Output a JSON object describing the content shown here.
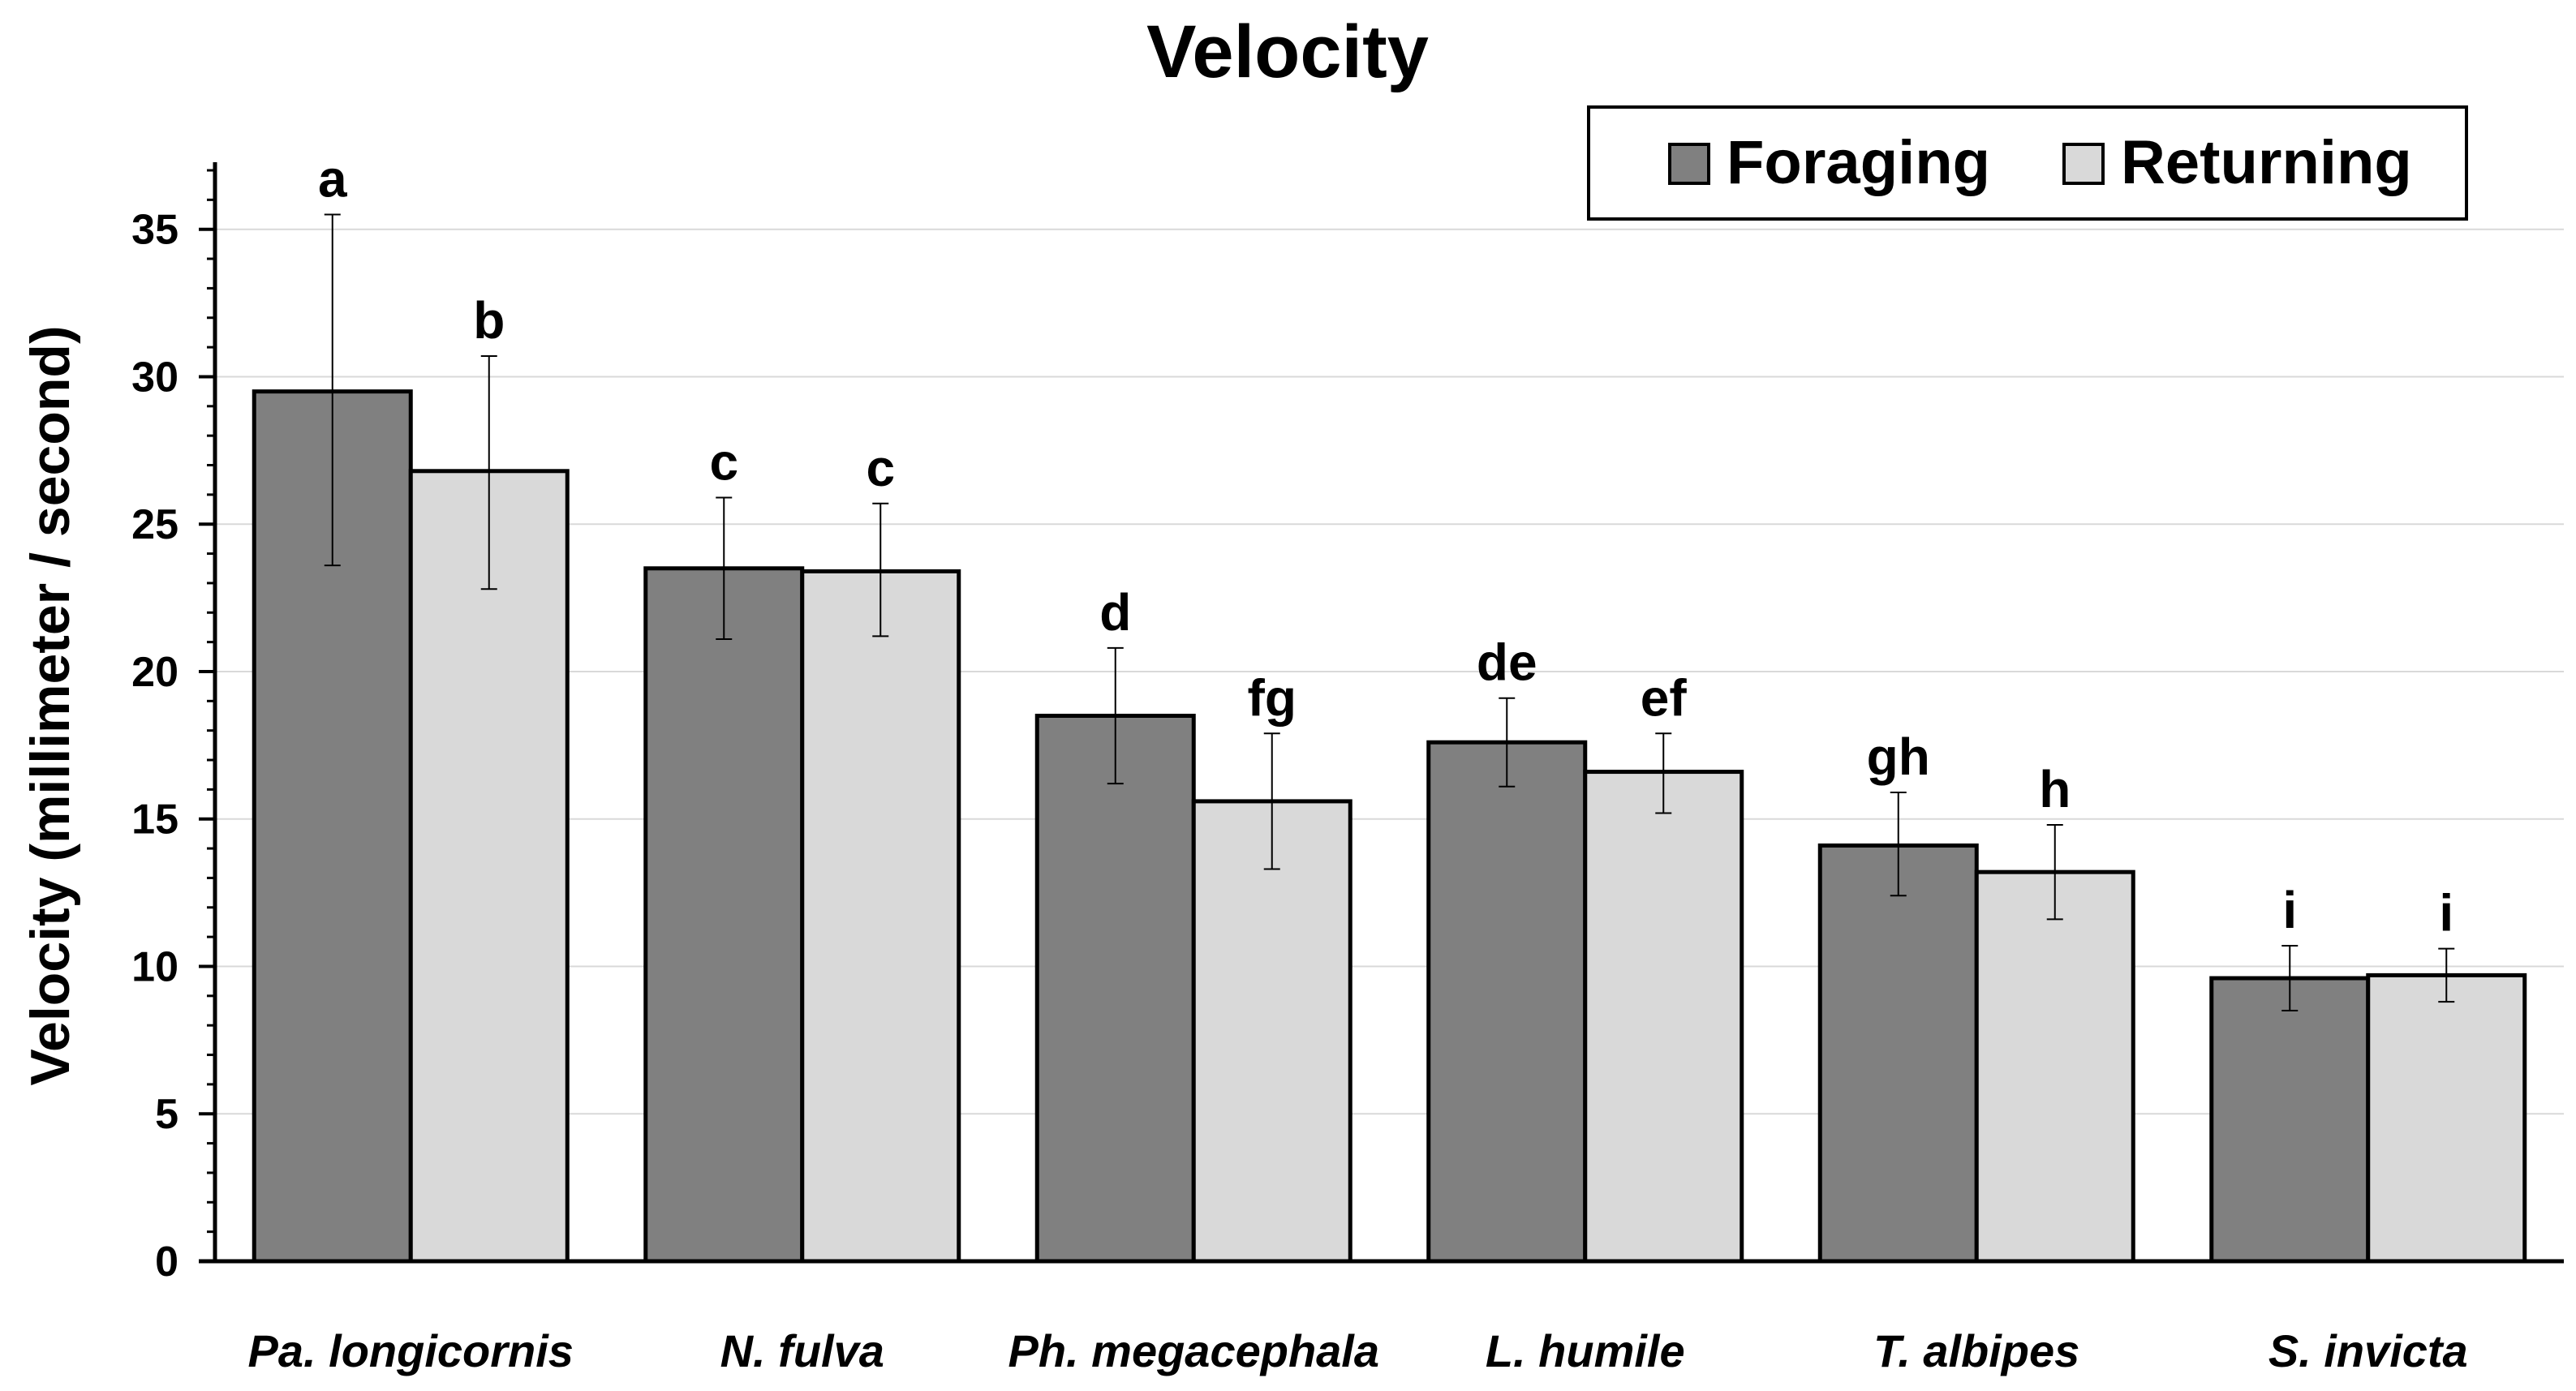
{
  "chart_data": {
    "type": "bar",
    "title": "Velocity",
    "xlabel": "",
    "ylabel": "Velocity (millimeter / second)",
    "ylim": [
      0,
      37
    ],
    "yticks": [
      0,
      5,
      10,
      15,
      20,
      25,
      30,
      35
    ],
    "grid": true,
    "legend_position": "top-right",
    "categories": [
      "Pa. longicornis",
      "N. fulva",
      "Ph. megacephala",
      "L. humile",
      "T. albipes",
      "S. invicta"
    ],
    "series": [
      {
        "name": "Foraging",
        "color": "#808080",
        "values": [
          29.5,
          23.5,
          18.5,
          17.6,
          14.1,
          9.6
        ],
        "error_low": [
          23.6,
          21.1,
          16.2,
          16.1,
          12.4,
          8.5
        ],
        "error_high": [
          35.5,
          25.9,
          20.8,
          19.1,
          15.9,
          10.7
        ],
        "significance": [
          "a",
          "c",
          "d",
          "de",
          "gh",
          "i"
        ]
      },
      {
        "name": "Returning",
        "color": "#d9d9d9",
        "values": [
          26.8,
          23.4,
          15.6,
          16.6,
          13.2,
          9.7
        ],
        "error_low": [
          22.8,
          21.2,
          13.3,
          15.2,
          11.6,
          8.8
        ],
        "error_high": [
          30.7,
          25.7,
          17.9,
          17.9,
          14.8,
          10.6
        ],
        "significance": [
          "b",
          "c",
          "fg",
          "ef",
          "h",
          "i"
        ]
      }
    ]
  }
}
